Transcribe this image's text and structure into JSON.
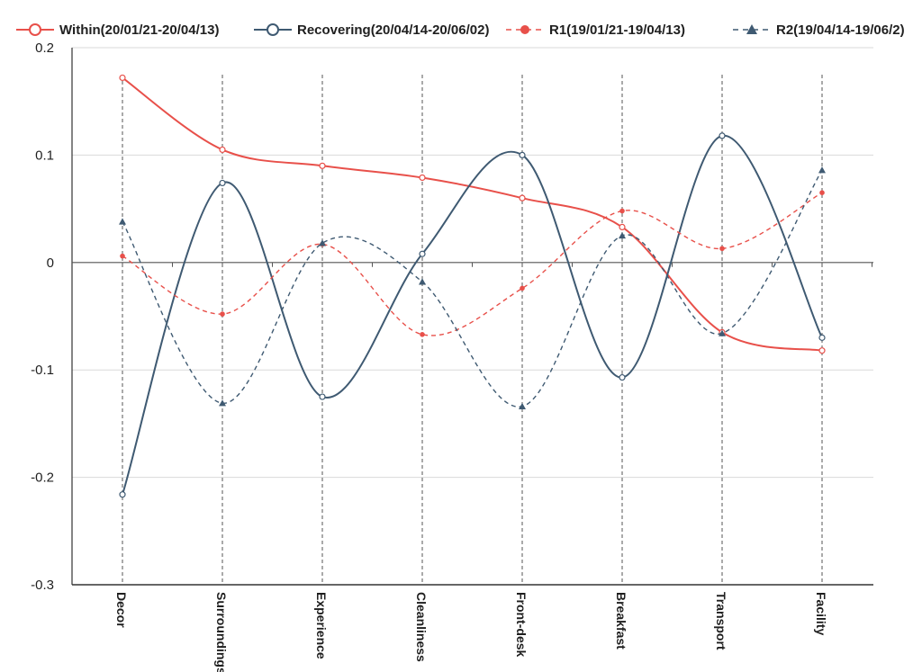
{
  "chart_data": {
    "type": "line",
    "title": "",
    "xlabel": "",
    "ylabel": "",
    "ylim": [
      -0.3,
      0.2
    ],
    "yticks": [
      -0.3,
      -0.2,
      -0.1,
      0,
      0.1,
      0.2
    ],
    "ytick_labels": [
      "-0.3",
      "-0.2",
      "-0.1",
      "0",
      "0.1",
      "0.2"
    ],
    "categories": [
      "Decor",
      "Surroundings",
      "Experience",
      "Cleanliness",
      "Front-desk",
      "Breakfast",
      "Transport",
      "Facility"
    ],
    "grid": "horizontal",
    "legend_position": "top",
    "series": [
      {
        "name": "Within(20/01/21-20/04/13)",
        "color": "#e8504a",
        "line_style": "solid",
        "marker": "open-circle",
        "values": [
          0.172,
          0.105,
          0.09,
          0.079,
          0.06,
          0.033,
          -0.065,
          -0.082
        ]
      },
      {
        "name": "Recovering(20/04/14-20/06/02)",
        "color": "#3f5a72",
        "line_style": "solid",
        "marker": "open-circle",
        "values": [
          -0.216,
          0.074,
          -0.125,
          0.008,
          0.1,
          -0.107,
          0.118,
          -0.07
        ]
      },
      {
        "name": "R1(19/01/21-19/04/13)",
        "color": "#e8504a",
        "line_style": "dashed",
        "marker": "filled-circle",
        "values": [
          0.006,
          -0.048,
          0.017,
          -0.067,
          -0.024,
          0.048,
          0.013,
          0.065
        ]
      },
      {
        "name": "R2(19/04/14-19/06/2)",
        "color": "#3f5a72",
        "line_style": "dashed",
        "marker": "filled-triangle",
        "values": [
          0.038,
          -0.131,
          0.018,
          -0.018,
          -0.134,
          0.025,
          -0.066,
          0.086
        ]
      }
    ]
  }
}
